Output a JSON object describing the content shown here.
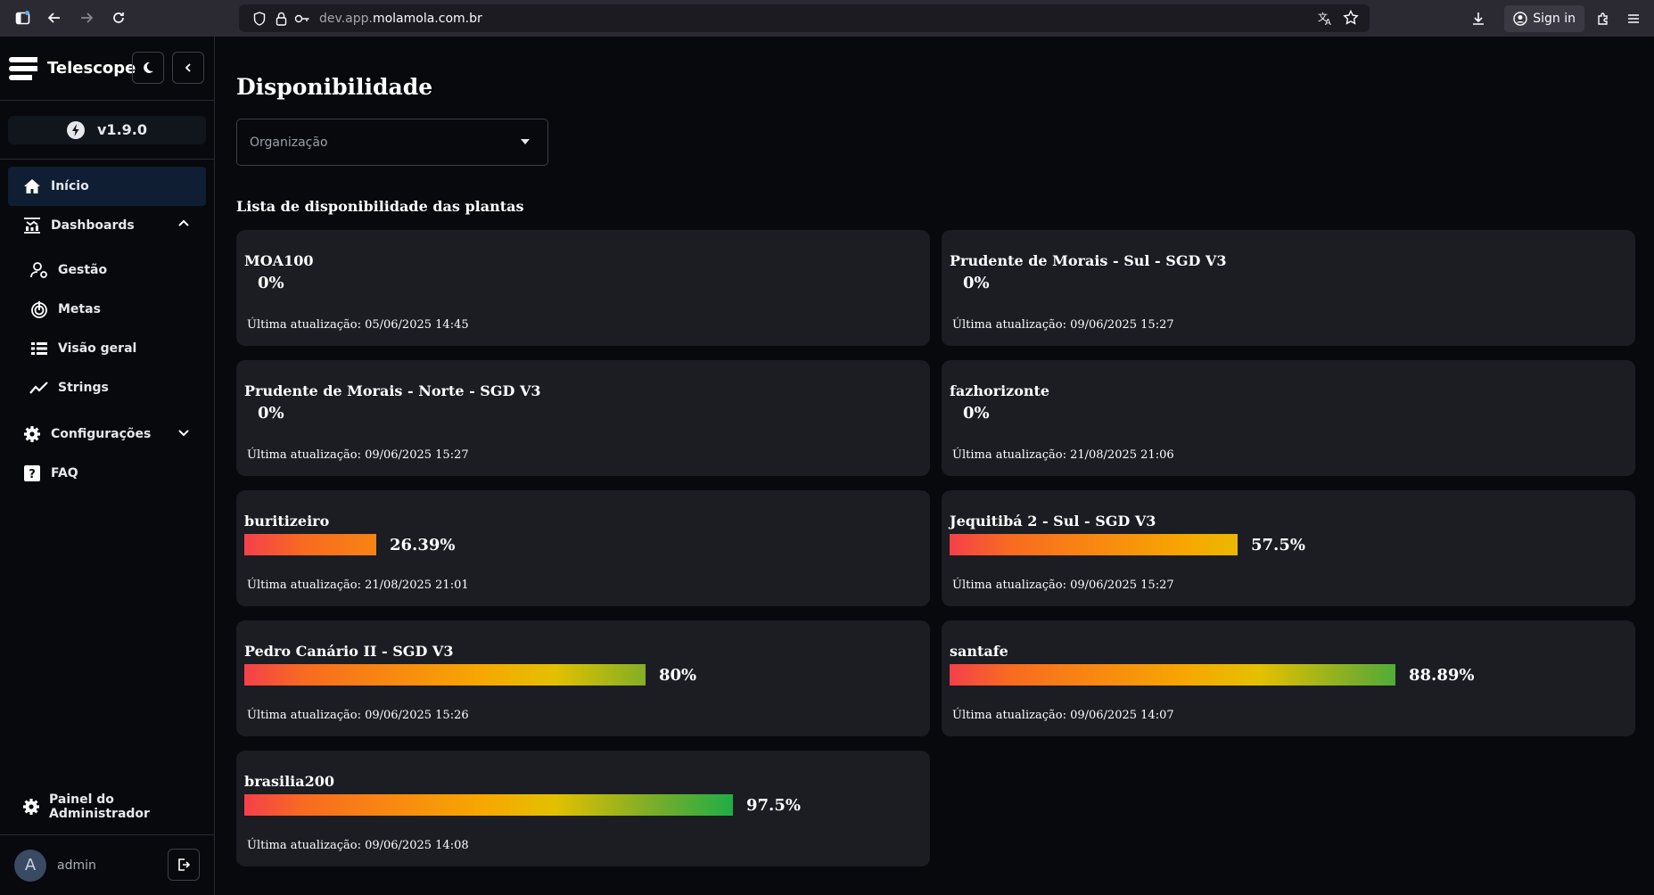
{
  "browser": {
    "url_prefix": "dev.app.",
    "url_domain": "molamola.com.br",
    "signin_label": "Sign in"
  },
  "sidebar": {
    "app_title": "Telescope",
    "version": "v1.9.0",
    "items": [
      {
        "label": "Início",
        "icon": "home-icon",
        "active": true
      },
      {
        "label": "Dashboards",
        "icon": "dashboard-icon",
        "expanded": true
      },
      {
        "label": "Gestão",
        "icon": "users-cog-icon"
      },
      {
        "label": "Metas",
        "icon": "target-icon"
      },
      {
        "label": "Visão geral",
        "icon": "list-icon"
      },
      {
        "label": "Strings",
        "icon": "trend-icon"
      },
      {
        "label": "Configurações",
        "icon": "gear-icon",
        "expanded": false
      },
      {
        "label": "FAQ",
        "icon": "help-icon"
      }
    ],
    "admin_panel": "Painel do Administrador",
    "user": {
      "initial": "A",
      "name": "admin"
    }
  },
  "main": {
    "title": "Disponibilidade",
    "org_placeholder": "Organização",
    "list_title": "Lista de disponibilidade das plantas",
    "plants": [
      {
        "name": "MOA100",
        "percent_label": "0%",
        "percent": 0,
        "updated": "Última atualização: 05/06/2025 14:45"
      },
      {
        "name": "Prudente de Morais - Sul - SGD V3",
        "percent_label": "0%",
        "percent": 0,
        "updated": "Última atualização: 09/06/2025 15:27"
      },
      {
        "name": "Prudente de Morais - Norte - SGD V3",
        "percent_label": "0%",
        "percent": 0,
        "updated": "Última atualização: 09/06/2025 15:27"
      },
      {
        "name": "fazhorizonte",
        "percent_label": "0%",
        "percent": 0,
        "updated": "Última atualização: 21/08/2025 21:06"
      },
      {
        "name": "buritizeiro",
        "percent_label": "26.39%",
        "percent": 26.39,
        "updated": "Última atualização: 21/08/2025 21:01"
      },
      {
        "name": "Jequitibá 2 - Sul - SGD V3",
        "percent_label": "57.5%",
        "percent": 57.5,
        "updated": "Última atualização: 09/06/2025 15:27"
      },
      {
        "name": "Pedro Canário II - SGD V3",
        "percent_label": "80%",
        "percent": 80,
        "updated": "Última atualização: 09/06/2025 15:26"
      },
      {
        "name": "santafe",
        "percent_label": "88.89%",
        "percent": 88.89,
        "updated": "Última atualização: 09/06/2025 14:07"
      },
      {
        "name": "brasilia200",
        "percent_label": "97.5%",
        "percent": 97.5,
        "updated": "Última atualização: 09/06/2025 14:08"
      }
    ]
  }
}
